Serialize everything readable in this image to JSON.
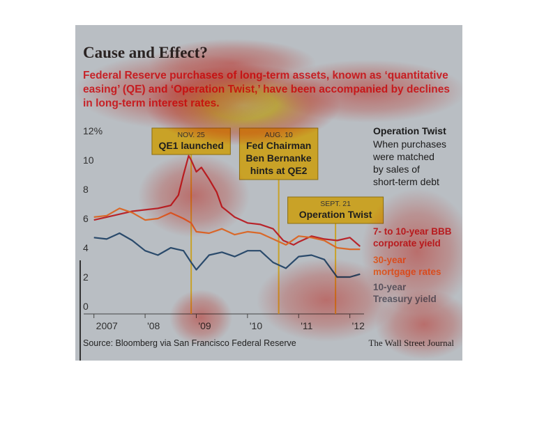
{
  "title": "Cause and Effect?",
  "subtitle_lines": [
    "Federal Reserve purchases of long-term assets, known as ‘quantitative",
    "easing’ (QE) and ‘Operation Twist,’ have been accompanied by declines",
    "in long-term interest rates."
  ],
  "source": "Source: Bloomberg via San Francisco Federal Reserve",
  "publisher": "The Wall Street Journal",
  "operation_twist_note": {
    "title": "Operation Twist",
    "lines": [
      "When purchases",
      "were matched",
      "by sales of",
      "short-term debt"
    ]
  },
  "annotations": [
    {
      "date": "NOV. 25",
      "lines": [
        "QE1 launched"
      ],
      "x": 2008.9
    },
    {
      "date": "AUG. 10",
      "lines": [
        "Fed Chairman",
        "Ben Bernanke",
        "hints at QE2"
      ],
      "x": 2010.61
    },
    {
      "date": "SEPT. 21",
      "lines": [
        "Operation Twist"
      ],
      "x": 2011.72
    }
  ],
  "colors": {
    "frame_bg": "#b9bec3",
    "corporate": "#b8242a",
    "mortgage": "#d9692a",
    "treasury": "#2a4a6b",
    "annotation_box": "#c9a227",
    "annotation_box_edge": "#8a6d10"
  },
  "heat_overlay": true,
  "chart_data": {
    "type": "line",
    "title": "Cause and Effect?",
    "x_ticks": [
      "2007",
      "'08",
      "'09",
      "'10",
      "'11",
      "'12"
    ],
    "x_tick_values": [
      2007,
      2008,
      2009,
      2010,
      2011,
      2012
    ],
    "y_ticks": [
      "12%",
      "10",
      "8",
      "6",
      "4",
      "2",
      "0"
    ],
    "y_tick_values": [
      12,
      10,
      8,
      6,
      4,
      2,
      0
    ],
    "ylim": [
      0,
      12
    ],
    "xlim": [
      2006.8,
      2012.25
    ],
    "grid": false,
    "series": [
      {
        "name": "7- to 10-year BBB corporate yield",
        "color": "#b8242a",
        "x": [
          2007.0,
          2007.25,
          2007.5,
          2007.75,
          2008.0,
          2008.25,
          2008.5,
          2008.65,
          2008.75,
          2008.85,
          2008.9,
          2009.0,
          2009.1,
          2009.25,
          2009.4,
          2009.5,
          2009.75,
          2010.0,
          2010.25,
          2010.5,
          2010.7,
          2010.9,
          2011.0,
          2011.25,
          2011.5,
          2011.75,
          2012.0,
          2012.2
        ],
        "y": [
          5.9,
          6.1,
          6.3,
          6.5,
          6.6,
          6.7,
          6.9,
          7.6,
          9.0,
          10.3,
          10.0,
          9.2,
          9.5,
          8.7,
          7.8,
          6.8,
          6.1,
          5.7,
          5.6,
          5.3,
          4.5,
          4.2,
          4.4,
          4.8,
          4.6,
          4.5,
          4.7,
          4.1
        ]
      },
      {
        "name": "30-year mortgage rates",
        "color": "#d9692a",
        "x": [
          2007.0,
          2007.25,
          2007.5,
          2007.75,
          2008.0,
          2008.25,
          2008.5,
          2008.75,
          2008.9,
          2009.0,
          2009.25,
          2009.5,
          2009.75,
          2010.0,
          2010.25,
          2010.5,
          2010.75,
          2011.0,
          2011.25,
          2011.5,
          2011.75,
          2012.0,
          2012.2
        ],
        "y": [
          6.1,
          6.2,
          6.7,
          6.4,
          5.9,
          6.0,
          6.4,
          6.0,
          5.7,
          5.1,
          5.0,
          5.3,
          4.9,
          5.1,
          5.0,
          4.6,
          4.2,
          4.8,
          4.7,
          4.5,
          4.0,
          3.9,
          3.9
        ]
      },
      {
        "name": "10-year Treasury yield",
        "color": "#2a4a6b",
        "x": [
          2007.0,
          2007.25,
          2007.5,
          2007.75,
          2008.0,
          2008.25,
          2008.5,
          2008.75,
          2008.9,
          2009.0,
          2009.25,
          2009.5,
          2009.75,
          2010.0,
          2010.25,
          2010.5,
          2010.75,
          2011.0,
          2011.25,
          2011.5,
          2011.75,
          2012.0,
          2012.2
        ],
        "y": [
          4.7,
          4.6,
          5.0,
          4.5,
          3.8,
          3.5,
          4.0,
          3.8,
          3.0,
          2.5,
          3.5,
          3.7,
          3.4,
          3.8,
          3.8,
          3.0,
          2.6,
          3.4,
          3.5,
          3.2,
          2.0,
          2.0,
          2.2
        ]
      }
    ],
    "legend_placement": "right"
  }
}
